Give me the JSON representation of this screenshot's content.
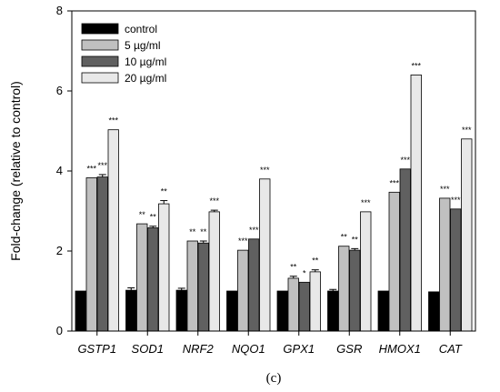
{
  "chart_data": {
    "type": "bar",
    "panel_label": "(c)",
    "ylabel": "Fold-change (relative to control)",
    "ylim": [
      0,
      8
    ],
    "yticks": [
      0,
      2,
      4,
      6,
      8
    ],
    "categories": [
      "GSTP1",
      "SOD1",
      "NRF2",
      "NQO1",
      "GPX1",
      "GSR",
      "HMOX1",
      "CAT"
    ],
    "legend_position": "top-left",
    "series": [
      {
        "name": "control",
        "color": "#000000",
        "values": [
          1.0,
          1.02,
          1.02,
          1.0,
          1.0,
          1.0,
          1.0,
          0.98
        ],
        "errors": [
          0,
          0.06,
          0.05,
          0,
          0,
          0.04,
          0,
          0
        ],
        "significance": [
          "",
          "",
          "",
          "",
          "",
          "",
          "",
          ""
        ]
      },
      {
        "name": "5 µg/ml",
        "color": "#c0c0c0",
        "values": [
          3.83,
          2.68,
          2.25,
          2.02,
          1.32,
          2.12,
          3.47,
          3.32
        ],
        "errors": [
          0,
          0,
          0,
          0,
          0.05,
          0,
          0,
          0
        ],
        "significance": [
          "***",
          "**",
          "**",
          "***",
          "**",
          "**",
          "***",
          "***"
        ]
      },
      {
        "name": "10 µg/ml",
        "color": "#606060",
        "values": [
          3.85,
          2.58,
          2.2,
          2.3,
          1.22,
          2.02,
          4.05,
          3.05
        ],
        "errors": [
          0.06,
          0.04,
          0.05,
          0,
          0,
          0.04,
          0,
          0
        ],
        "significance": [
          "***",
          "**",
          "**",
          "***",
          "*",
          "**",
          "***",
          "***"
        ]
      },
      {
        "name": "20 µg/ml",
        "color": "#e8e8e8",
        "values": [
          5.03,
          3.18,
          2.98,
          3.8,
          1.48,
          2.98,
          6.4,
          4.8
        ],
        "errors": [
          0,
          0.08,
          0.04,
          0,
          0.05,
          0,
          0,
          0
        ],
        "significance": [
          "***",
          "**",
          "***",
          "***",
          "**",
          "***",
          "***",
          "***"
        ]
      }
    ]
  }
}
